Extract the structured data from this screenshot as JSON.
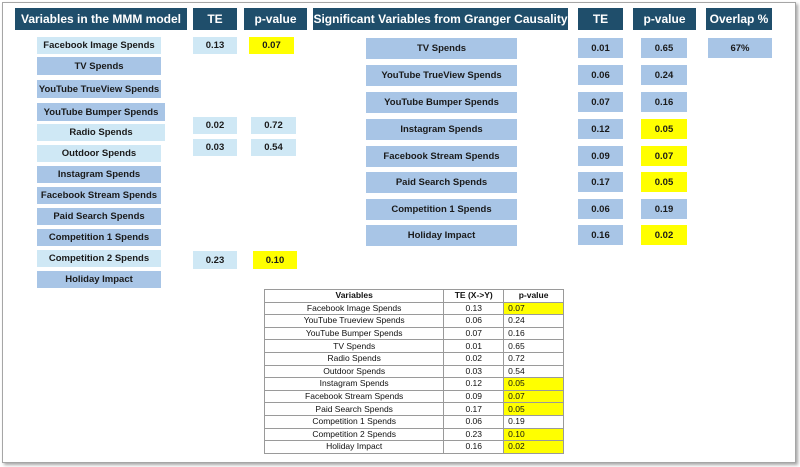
{
  "headers": {
    "mmm_variables": "Variables in the MMM model",
    "te_left": "TE",
    "pvalue_left": "p-value",
    "granger_variables": "Significant Variables from Granger Causality",
    "te_right": "TE",
    "pvalue_right": "p-value",
    "overlap": "Overlap %"
  },
  "mmm_rows": [
    {
      "name": "Facebook Image Spends",
      "te": "0.13",
      "p": "0.07",
      "highlight": true
    },
    {
      "name": "TV Spends",
      "te": "",
      "p": "",
      "highlight": false
    },
    {
      "name": "YouTube TrueView Spends",
      "te": "",
      "p": "",
      "highlight": false
    },
    {
      "name": "YouTube Bumper Spends",
      "te": "",
      "p": "",
      "highlight": false
    },
    {
      "name": "Radio Spends",
      "te": "0.02",
      "p": "0.72",
      "highlight": false
    },
    {
      "name": "Outdoor Spends",
      "te": "0.03",
      "p": "0.54",
      "highlight": false
    },
    {
      "name": "Instagram Spends",
      "te": "",
      "p": "",
      "highlight": false
    },
    {
      "name": "Facebook Stream Spends",
      "te": "",
      "p": "",
      "highlight": false
    },
    {
      "name": "Paid Search Spends",
      "te": "",
      "p": "",
      "highlight": false
    },
    {
      "name": "Competition 1 Spends",
      "te": "",
      "p": "",
      "highlight": false
    },
    {
      "name": "Competition 2 Spends",
      "te": "0.23",
      "p": "0.10",
      "highlight": true
    },
    {
      "name": "Holiday Impact",
      "te": "",
      "p": "",
      "highlight": false
    }
  ],
  "granger_rows": [
    {
      "name": "TV Spends",
      "te": "0.01",
      "p": "0.65",
      "highlight": false
    },
    {
      "name": "YouTube TrueView Spends",
      "te": "0.06",
      "p": "0.24",
      "highlight": false
    },
    {
      "name": "YouTube Bumper Spends",
      "te": "0.07",
      "p": "0.16",
      "highlight": false
    },
    {
      "name": "Instagram Spends",
      "te": "0.12",
      "p": "0.05",
      "highlight": true
    },
    {
      "name": "Facebook Stream Spends",
      "te": "0.09",
      "p": "0.07",
      "highlight": true
    },
    {
      "name": "Paid Search Spends",
      "te": "0.17",
      "p": "0.05",
      "highlight": true
    },
    {
      "name": "Competition 1 Spends",
      "te": "0.06",
      "p": "0.19",
      "highlight": false
    },
    {
      "name": "Holiday Impact",
      "te": "0.16",
      "p": "0.02",
      "highlight": true
    }
  ],
  "overlap_value": "67%",
  "table": {
    "columns": [
      "Variables",
      "TE (X->Y)",
      "p-value"
    ],
    "rows": [
      {
        "variable": "Facebook Image Spends",
        "te": "0.13",
        "p": "0.07",
        "highlight": true
      },
      {
        "variable": "YouTube Trueview Spends",
        "te": "0.06",
        "p": "0.24",
        "highlight": false
      },
      {
        "variable": "YouTube Bumper Spends",
        "te": "0.07",
        "p": "0.16",
        "highlight": false
      },
      {
        "variable": "TV Spends",
        "te": "0.01",
        "p": "0.65",
        "highlight": false
      },
      {
        "variable": "Radio Spends",
        "te": "0.02",
        "p": "0.72",
        "highlight": false
      },
      {
        "variable": "Outdoor Spends",
        "te": "0.03",
        "p": "0.54",
        "highlight": false
      },
      {
        "variable": "Instagram Spends",
        "te": "0.12",
        "p": "0.05",
        "highlight": true
      },
      {
        "variable": "Facebook Stream Spends",
        "te": "0.09",
        "p": "0.07",
        "highlight": true
      },
      {
        "variable": "Paid Search Spends",
        "te": "0.17",
        "p": "0.05",
        "highlight": true
      },
      {
        "variable": "Competition 1 Spends",
        "te": "0.06",
        "p": "0.19",
        "highlight": false
      },
      {
        "variable": "Competition 2 Spends",
        "te": "0.23",
        "p": "0.10",
        "highlight": true
      },
      {
        "variable": "Holiday Impact",
        "te": "0.16",
        "p": "0.02",
        "highlight": true
      }
    ]
  },
  "colors": {
    "header": "#1f4e6b",
    "mmm_light": "#cfe8f5",
    "mmm_mid": "#a8c5e6",
    "highlight": "#ffff00"
  }
}
